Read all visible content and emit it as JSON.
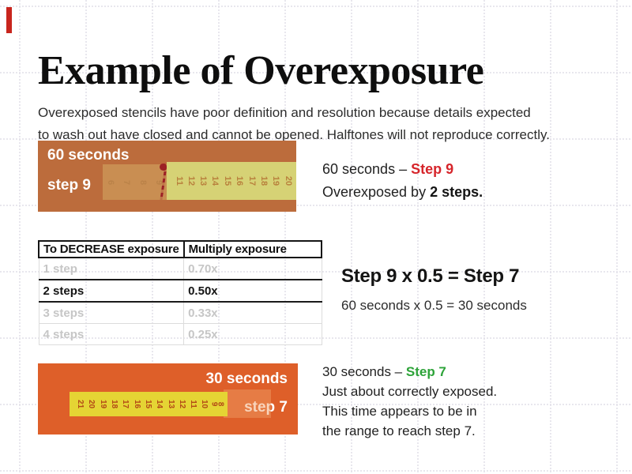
{
  "slide": {
    "title": "Example of Overexposure",
    "intro_line1": "Overexposed stencils have poor definition and resolution because details expected",
    "intro_line2": "to wash out have closed and cannot be opened. Halftones will not reproduce correctly.",
    "accent_color": "#c8251d"
  },
  "figure1": {
    "time_label": "60 seconds",
    "step_label": "step 9",
    "strip_numbers": [
      "11",
      "12",
      "13",
      "14",
      "15",
      "16",
      "17",
      "18",
      "19",
      "20"
    ],
    "ghost_numbers": [
      "6",
      "7",
      "8",
      "9"
    ],
    "bg_color": "#bc6c3c",
    "washed_color": "#c98e52",
    "strip_color": "#d6d275",
    "number_color": "#b9813d",
    "mark_color": "#9c2125"
  },
  "caption1": {
    "time_text": "60 seconds – ",
    "step_text": "Step 9",
    "step_color": "#d6252b",
    "line2_normal": "Overexposed by ",
    "line2_bold": "2 steps."
  },
  "table": {
    "headers": [
      "To DECREASE exposure",
      "Multiply exposure"
    ],
    "rows": [
      {
        "steps": "1 step",
        "factor": "0.70x",
        "highlight": false
      },
      {
        "steps": "2 steps",
        "factor": "0.50x",
        "highlight": true
      },
      {
        "steps": "3 steps",
        "factor": "0.33x",
        "highlight": false
      },
      {
        "steps": "4 steps",
        "factor": "0.25x",
        "highlight": false
      }
    ]
  },
  "calc": {
    "headline": "Step 9 x 0.5 = Step 7",
    "subline": "60 seconds x 0.5 = 30 seconds"
  },
  "figure2": {
    "time_label": "30 seconds",
    "step_label": "step 7",
    "strip_numbers": [
      "21",
      "20",
      "19",
      "18",
      "17",
      "16",
      "15",
      "14",
      "13",
      "12",
      "11",
      "10",
      "9",
      "8"
    ],
    "bg_color": "#de5f29",
    "strip_color": "#e5d434",
    "number_color": "#b34a16",
    "faded_zone": true
  },
  "caption2": {
    "time_text": "30 seconds – ",
    "step_text": "Step 7",
    "step_color": "#2da339",
    "line2": "Just about correctly exposed.",
    "line3": "This time appears to be in",
    "line4": "the range to reach step 7."
  }
}
